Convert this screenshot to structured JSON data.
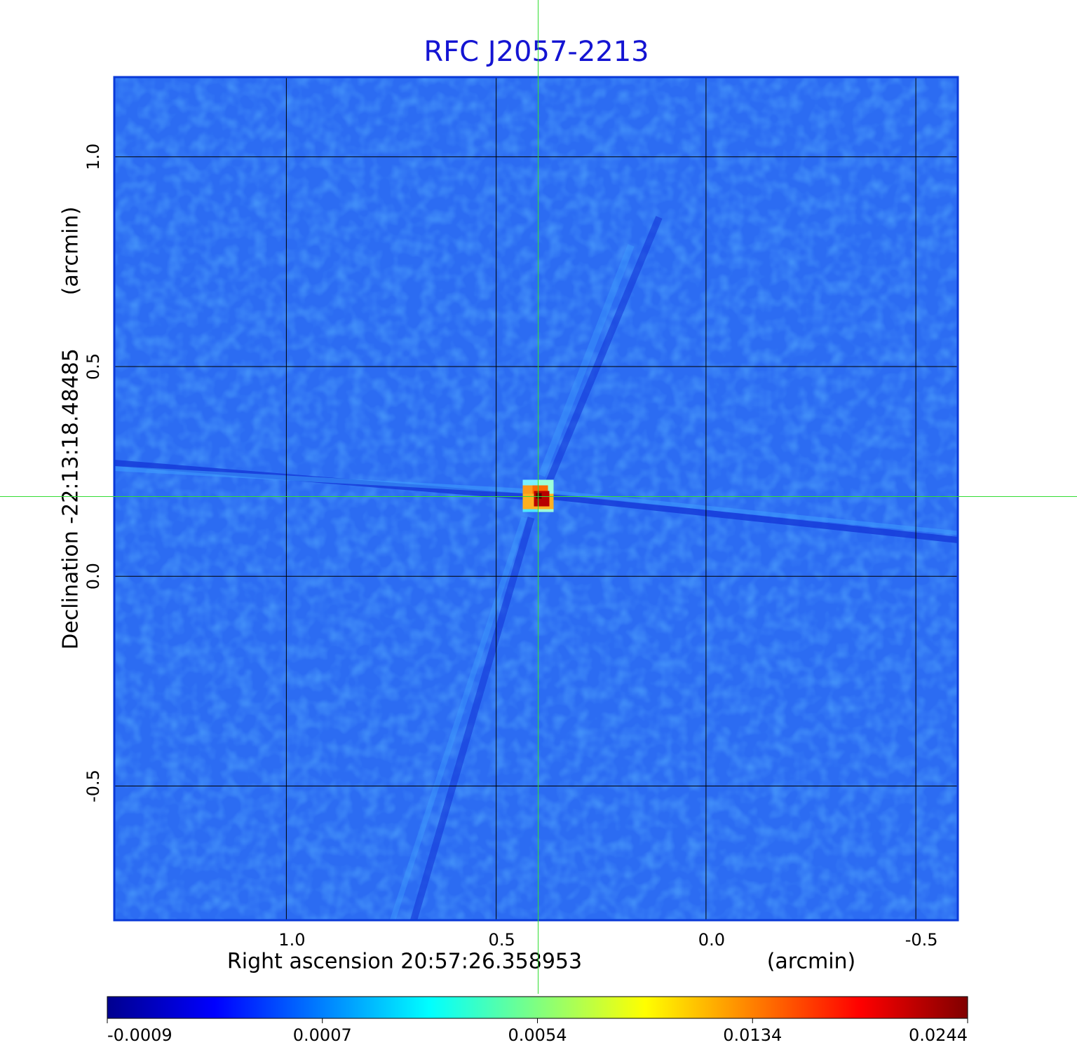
{
  "chart_data": {
    "type": "image",
    "title": "RFC J2057-2213",
    "xlabel": "Right ascension  20:57:26.358953",
    "xunit": "(arcmin)",
    "ylabel": "Declination  -22:13:18.48485",
    "yunit": "(arcmin)",
    "xlim": [
      1.41,
      -0.6
    ],
    "ylim": [
      -0.82,
      1.19
    ],
    "xticks": [
      {
        "value": 1,
        "label": "1.0"
      },
      0.5,
      {
        "value": 0,
        "label": "0.0"
      },
      -0.5
    ],
    "yticks": [
      {
        "value": 1,
        "label": "1.0"
      },
      0.5,
      {
        "value": 0,
        "label": "0.0"
      },
      -0.5
    ],
    "grid": true,
    "crosshair": {
      "x": 0.4,
      "y": 0.19,
      "color": "#33dd33"
    },
    "background_color": "#2c6cf2",
    "colormap": "jet",
    "colorbar_ticks": [
      -0.0009,
      0.0007,
      0.0054,
      0.0134,
      0.0244
    ]
  }
}
